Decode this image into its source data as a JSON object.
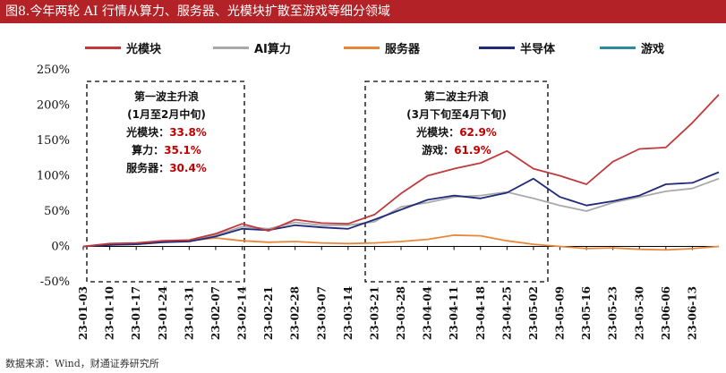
{
  "title": "图8.今年两轮 AI 行情从算力、服务器、光模块扩散至游戏等细分领域",
  "source": "数据来源：Wind，财通证券研究所",
  "colors": {
    "header_bg": "#b32226",
    "optical": "#c0393b",
    "ai": "#a9a9a9",
    "server": "#e8873a",
    "semi": "#1f2a7a",
    "game": "#2e8b9a",
    "highlight": "#c00000"
  },
  "annotations": [
    {
      "title": "第一波主升浪",
      "subtitle": "(1月至2月中旬)",
      "rows": [
        {
          "label": "光模块：",
          "value": "33.8%"
        },
        {
          "label": "算力：",
          "value": "35.1%"
        },
        {
          "label": "服务器：",
          "value": "30.4%"
        }
      ]
    },
    {
      "title": "第二波主升浪",
      "subtitle": "(3月下旬至4月下旬)",
      "rows": [
        {
          "label": "光模块：",
          "value": "62.9%"
        },
        {
          "label": "游戏：",
          "value": "61.9%"
        }
      ]
    }
  ],
  "chart_data": {
    "type": "line",
    "ylim": [
      -50,
      250
    ],
    "yticks": [
      -50,
      0,
      50,
      100,
      150,
      200,
      250
    ],
    "ytick_labels": [
      "-50%",
      "0%",
      "50%",
      "100%",
      "150%",
      "200%",
      "250%"
    ],
    "xtick_labels": [
      "23-01-03",
      "23-01-10",
      "23-01-17",
      "23-01-24",
      "23-01-31",
      "23-02-07",
      "23-02-14",
      "23-02-21",
      "23-02-28",
      "23-03-07",
      "23-03-14",
      "23-03-21",
      "23-03-28",
      "23-04-04",
      "23-04-11",
      "23-04-18",
      "23-04-25",
      "23-05-02",
      "23-05-09",
      "23-05-16",
      "23-05-23",
      "23-05-30",
      "23-06-06",
      "23-06-13"
    ],
    "x": [
      "23-01-03",
      "23-01-10",
      "23-01-17",
      "23-01-24",
      "23-01-31",
      "23-02-07",
      "23-02-14",
      "23-02-21",
      "23-02-28",
      "23-03-07",
      "23-03-14",
      "23-03-21",
      "23-03-28",
      "23-04-04",
      "23-04-11",
      "23-04-18",
      "23-04-25",
      "23-05-02",
      "23-05-09",
      "23-05-16",
      "23-05-23",
      "23-05-30",
      "23-06-06",
      "23-06-13",
      "23-06-17"
    ],
    "series": [
      {
        "name": "光模块",
        "color": "#c0393b",
        "values": [
          0,
          4,
          5,
          8,
          9,
          18,
          32,
          22,
          38,
          33,
          32,
          45,
          75,
          100,
          110,
          118,
          135,
          110,
          100,
          88,
          120,
          138,
          140,
          175,
          215
        ]
      },
      {
        "name": "AI算力",
        "color": "#a9a9a9",
        "values": [
          0,
          3,
          4,
          7,
          8,
          16,
          28,
          25,
          34,
          30,
          30,
          35,
          56,
          62,
          70,
          72,
          77,
          68,
          58,
          50,
          62,
          70,
          78,
          82,
          96
        ]
      },
      {
        "name": "服务器",
        "color": "#e8873a",
        "values": [
          0,
          2,
          3,
          6,
          8,
          12,
          8,
          6,
          7,
          5,
          4,
          5,
          7,
          10,
          16,
          15,
          8,
          3,
          0,
          -3,
          -2,
          -4,
          -5,
          -3,
          0
        ]
      },
      {
        "name": "半导体",
        "color": "#1f2a7a",
        "values": [
          0,
          2,
          3,
          6,
          7,
          14,
          25,
          23,
          30,
          27,
          25,
          38,
          52,
          66,
          72,
          68,
          76,
          96,
          70,
          58,
          64,
          72,
          88,
          90,
          105
        ]
      },
      {
        "name": "游戏",
        "color": "#2e8b9a",
        "values": null
      }
    ]
  }
}
